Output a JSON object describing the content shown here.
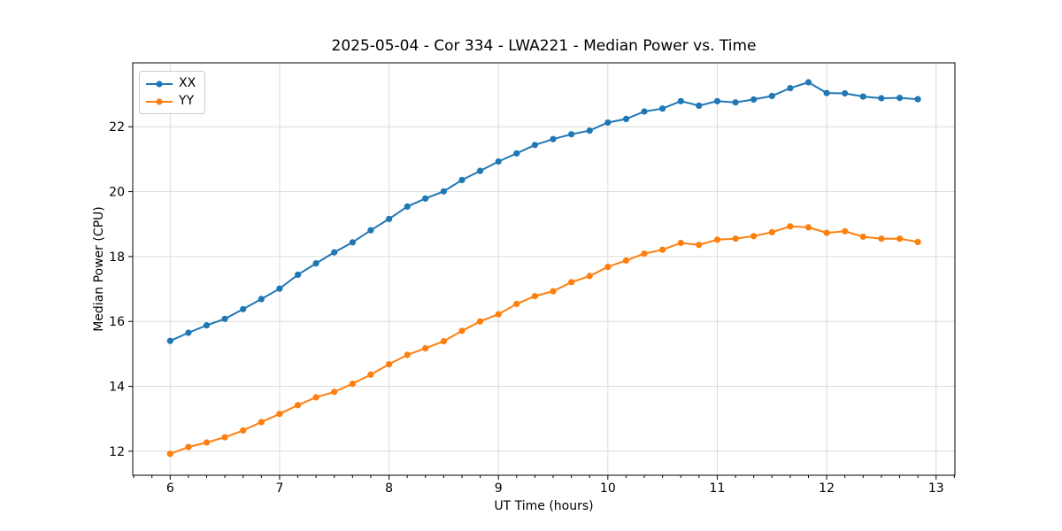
{
  "chart_data": {
    "type": "line",
    "title": "2025-05-04 - Cor 334 - LWA221 - Median Power vs. Time",
    "xlabel": "UT Time (hours)",
    "ylabel": "Median Power (CPU)",
    "xlim": [
      5.658,
      13.172
    ],
    "ylim": [
      11.26,
      23.97
    ],
    "xticks": [
      6,
      7,
      8,
      9,
      10,
      11,
      12,
      13
    ],
    "xtick_labels": [
      "6",
      "7",
      "8",
      "9",
      "10",
      "11",
      "12",
      "13"
    ],
    "yticks": [
      12,
      14,
      16,
      18,
      20,
      22
    ],
    "ytick_labels": [
      "12",
      "14",
      "16",
      "18",
      "20",
      "22"
    ],
    "x_minor_step": 0.1666667,
    "grid": true,
    "grid_color": "#dcdcdc",
    "spine_color": "#000000",
    "legend_position": "upper left",
    "x": [
      6.0,
      6.167,
      6.333,
      6.5,
      6.667,
      6.833,
      7.0,
      7.167,
      7.333,
      7.5,
      7.667,
      7.833,
      8.0,
      8.167,
      8.333,
      8.5,
      8.667,
      8.833,
      9.0,
      9.167,
      9.333,
      9.5,
      9.667,
      9.833,
      10.0,
      10.167,
      10.333,
      10.5,
      10.667,
      10.833,
      11.0,
      11.167,
      11.333,
      11.5,
      11.667,
      11.833,
      12.0,
      12.167,
      12.333,
      12.5,
      12.667,
      12.833
    ],
    "series": [
      {
        "name": "XX",
        "color": "#1f77b4",
        "values": [
          15.4,
          15.65,
          15.88,
          16.08,
          16.38,
          16.69,
          17.01,
          17.44,
          17.79,
          18.13,
          18.44,
          18.81,
          19.16,
          19.54,
          19.79,
          20.01,
          20.36,
          20.64,
          20.93,
          21.18,
          21.44,
          21.62,
          21.77,
          21.88,
          22.13,
          22.24,
          22.47,
          22.56,
          22.79,
          22.65,
          22.79,
          22.75,
          22.84,
          22.95,
          23.19,
          23.37,
          23.04,
          23.03,
          22.93,
          22.88,
          22.89,
          22.85
        ]
      },
      {
        "name": "YY",
        "color": "#ff7f0e",
        "values": [
          11.92,
          12.13,
          12.27,
          12.43,
          12.64,
          12.9,
          13.15,
          13.42,
          13.66,
          13.83,
          14.08,
          14.36,
          14.68,
          14.97,
          15.17,
          15.39,
          15.71,
          16.0,
          16.22,
          16.54,
          16.78,
          16.93,
          17.21,
          17.4,
          17.68,
          17.88,
          18.09,
          18.21,
          18.42,
          18.36,
          18.52,
          18.55,
          18.63,
          18.75,
          18.93,
          18.9,
          18.73,
          18.78,
          18.61,
          18.55,
          18.55,
          18.45
        ]
      }
    ]
  }
}
